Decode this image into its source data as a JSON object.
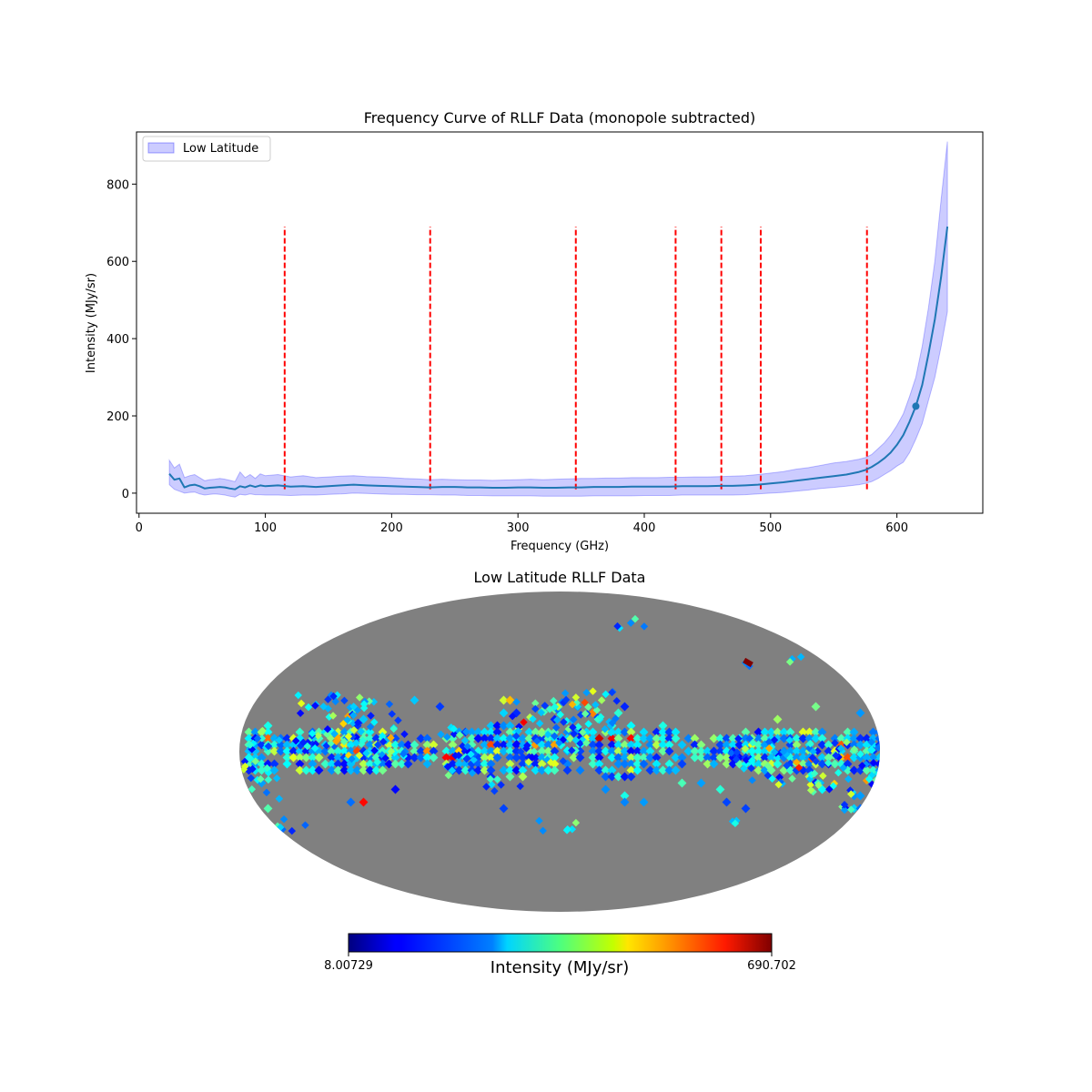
{
  "chart_data": [
    {
      "type": "line",
      "title": "Frequency Curve of RLLF Data (monopole subtracted)",
      "xlabel": "Frequency (GHz)",
      "ylabel": "Intensity (MJy/sr)",
      "xlim": [
        -2,
        668
      ],
      "ylim": [
        -52,
        935
      ],
      "xticks": [
        0,
        100,
        200,
        300,
        400,
        500,
        600
      ],
      "yticks": [
        0,
        200,
        400,
        600,
        800
      ],
      "legend": {
        "position": "top-left",
        "label": "Low Latitude"
      },
      "series": [
        {
          "name": "Low Latitude mean",
          "x": [
            24,
            28,
            32,
            36,
            40,
            44,
            48,
            52,
            56,
            60,
            64,
            68,
            72,
            76,
            80,
            84,
            88,
            92,
            96,
            100,
            110,
            120,
            130,
            140,
            150,
            160,
            170,
            180,
            190,
            200,
            210,
            220,
            230,
            240,
            250,
            260,
            270,
            280,
            290,
            300,
            310,
            320,
            330,
            340,
            350,
            360,
            370,
            380,
            390,
            400,
            410,
            420,
            430,
            440,
            450,
            460,
            470,
            480,
            490,
            500,
            510,
            520,
            530,
            540,
            550,
            560,
            570,
            575,
            580,
            585,
            590,
            595,
            600,
            605,
            610,
            615,
            620,
            625,
            630,
            635,
            640
          ],
          "y": [
            50,
            35,
            38,
            15,
            20,
            22,
            18,
            12,
            14,
            15,
            16,
            15,
            12,
            10,
            18,
            15,
            20,
            16,
            20,
            18,
            20,
            17,
            18,
            16,
            18,
            20,
            22,
            20,
            19,
            18,
            17,
            16,
            15,
            16,
            16,
            15,
            15,
            14,
            14,
            15,
            15,
            14,
            14,
            15,
            15,
            16,
            16,
            16,
            17,
            17,
            17,
            17,
            18,
            18,
            18,
            19,
            19,
            20,
            22,
            25,
            28,
            32,
            36,
            40,
            44,
            48,
            55,
            60,
            68,
            78,
            90,
            105,
            125,
            150,
            185,
            225,
            280,
            360,
            450,
            560,
            690
          ]
        },
        {
          "name": "Low Latitude band upper",
          "x": [
            24,
            28,
            32,
            36,
            40,
            44,
            48,
            52,
            56,
            60,
            64,
            68,
            72,
            76,
            80,
            84,
            88,
            92,
            96,
            100,
            110,
            120,
            130,
            140,
            150,
            160,
            170,
            180,
            190,
            200,
            210,
            220,
            230,
            240,
            250,
            260,
            270,
            280,
            290,
            300,
            310,
            320,
            330,
            340,
            350,
            360,
            370,
            380,
            390,
            400,
            410,
            420,
            430,
            440,
            450,
            460,
            470,
            480,
            490,
            500,
            510,
            520,
            530,
            540,
            550,
            560,
            570,
            575,
            580,
            585,
            590,
            595,
            600,
            605,
            610,
            615,
            620,
            625,
            630,
            635,
            640
          ],
          "y": [
            85,
            65,
            75,
            40,
            45,
            48,
            40,
            32,
            35,
            36,
            38,
            36,
            33,
            30,
            55,
            40,
            48,
            38,
            50,
            45,
            48,
            42,
            45,
            40,
            42,
            44,
            45,
            43,
            42,
            40,
            38,
            37,
            35,
            36,
            35,
            34,
            34,
            33,
            34,
            35,
            36,
            35,
            36,
            37,
            38,
            38,
            39,
            39,
            40,
            40,
            40,
            41,
            41,
            42,
            42,
            43,
            44,
            45,
            48,
            52,
            56,
            62,
            66,
            72,
            78,
            82,
            88,
            92,
            100,
            115,
            130,
            150,
            175,
            205,
            250,
            300,
            380,
            480,
            600,
            760,
            910
          ]
        },
        {
          "name": "Low Latitude band lower",
          "x": [
            24,
            28,
            32,
            36,
            40,
            44,
            48,
            52,
            56,
            60,
            64,
            68,
            72,
            76,
            80,
            84,
            88,
            92,
            96,
            100,
            110,
            120,
            130,
            140,
            150,
            160,
            170,
            180,
            190,
            200,
            210,
            220,
            230,
            240,
            250,
            260,
            270,
            280,
            290,
            300,
            310,
            320,
            330,
            340,
            350,
            360,
            370,
            380,
            390,
            400,
            410,
            420,
            430,
            440,
            450,
            460,
            470,
            480,
            490,
            500,
            510,
            520,
            530,
            540,
            550,
            560,
            570,
            575,
            580,
            585,
            590,
            595,
            600,
            605,
            610,
            615,
            620,
            625,
            630,
            635,
            640
          ],
          "y": [
            22,
            10,
            5,
            0,
            2,
            3,
            -2,
            -5,
            -3,
            -2,
            -3,
            -5,
            -8,
            -10,
            -3,
            -5,
            -2,
            -4,
            -4,
            -5,
            -5,
            -6,
            -5,
            -5,
            -3,
            -2,
            0,
            -1,
            -2,
            -3,
            -3,
            -4,
            -4,
            -5,
            -5,
            -6,
            -6,
            -7,
            -7,
            -7,
            -7,
            -8,
            -8,
            -8,
            -8,
            -7,
            -7,
            -7,
            -7,
            -6,
            -6,
            -6,
            -5,
            -5,
            -5,
            -5,
            -5,
            -4,
            -2,
            0,
            2,
            5,
            8,
            12,
            15,
            18,
            22,
            25,
            30,
            38,
            48,
            58,
            70,
            80,
            105,
            140,
            180,
            240,
            300,
            380,
            470
          ]
        }
      ],
      "highlight_point": {
        "x": 615,
        "y": 225
      },
      "vlines": {
        "x": [
          115.3,
          230.5,
          345.8,
          424.8,
          461.0,
          492.2,
          576.3
        ],
        "ymin": 10,
        "ymax": 690,
        "color": "#ff0000"
      }
    },
    {
      "type": "heatmap",
      "title": "Low Latitude RLLF Data",
      "projection": "mollweide",
      "colorbar": {
        "label": "Intensity (MJy/sr)",
        "min": "8.00729",
        "max": "690.702",
        "colormap": "jet"
      },
      "mask_color": "#808080"
    }
  ],
  "colors": {
    "line": "#1f77b4",
    "band_fill": "#0000ff",
    "vline": "#ff0000",
    "mask": "#808080"
  }
}
